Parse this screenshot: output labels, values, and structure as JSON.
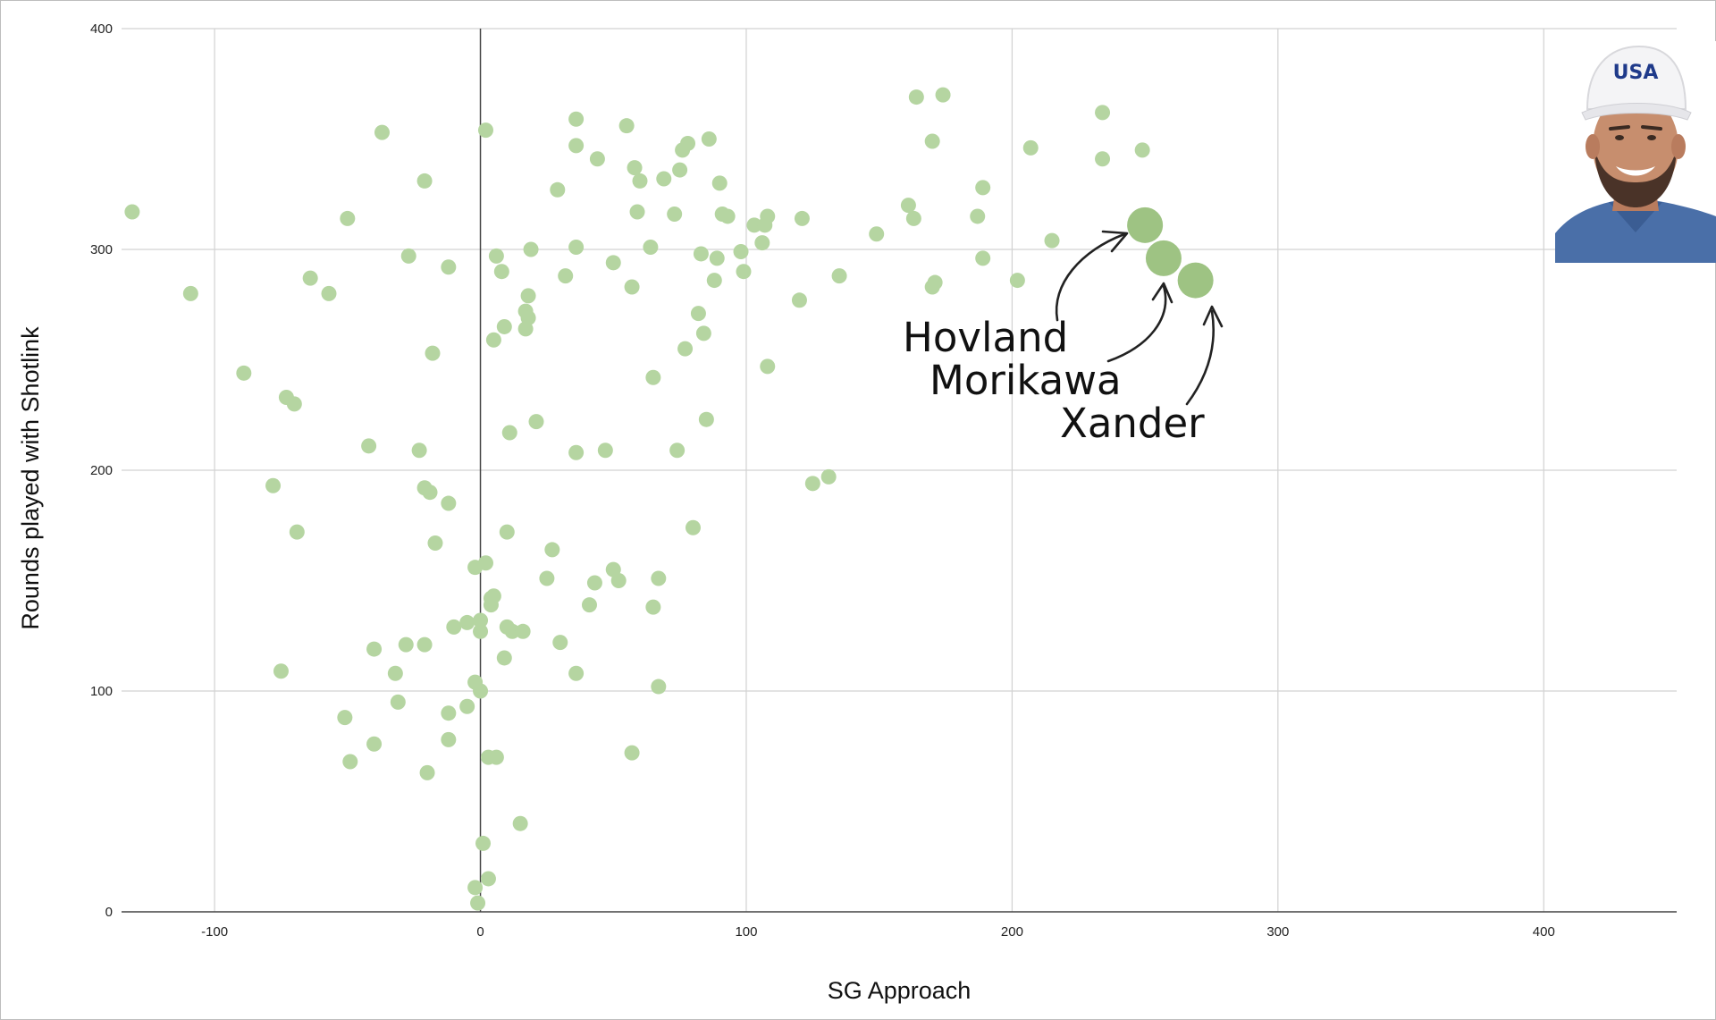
{
  "chart_data": {
    "type": "scatter",
    "xlabel": "SG Approach",
    "ylabel": "Rounds played with Shotlink",
    "xlim": [
      -135,
      450
    ],
    "ylim": [
      0,
      400
    ],
    "x_ticks": [
      "-100",
      "0",
      "100",
      "200",
      "300",
      "400"
    ],
    "x_tick_values": [
      -100,
      0,
      100,
      200,
      300,
      400
    ],
    "y_ticks": [
      "0",
      "100",
      "200",
      "300",
      "400"
    ],
    "y_tick_values": [
      0,
      100,
      200,
      300,
      400
    ],
    "grid": true,
    "point_color": "#b5d5a1",
    "highlight_color": "#9ec383",
    "points": [
      {
        "x": -131,
        "y": 317
      },
      {
        "x": -109,
        "y": 280
      },
      {
        "x": -89,
        "y": 244
      },
      {
        "x": -78,
        "y": 193
      },
      {
        "x": -75,
        "y": 109
      },
      {
        "x": -73,
        "y": 233
      },
      {
        "x": -70,
        "y": 230
      },
      {
        "x": -69,
        "y": 172
      },
      {
        "x": -64,
        "y": 287
      },
      {
        "x": -57,
        "y": 280
      },
      {
        "x": -51,
        "y": 88
      },
      {
        "x": -50,
        "y": 314
      },
      {
        "x": -49,
        "y": 68
      },
      {
        "x": -42,
        "y": 211
      },
      {
        "x": -40,
        "y": 76
      },
      {
        "x": -40,
        "y": 119
      },
      {
        "x": -37,
        "y": 353
      },
      {
        "x": -32,
        "y": 108
      },
      {
        "x": -31,
        "y": 95
      },
      {
        "x": -28,
        "y": 121
      },
      {
        "x": -27,
        "y": 297
      },
      {
        "x": -23,
        "y": 209
      },
      {
        "x": -21,
        "y": 331
      },
      {
        "x": -21,
        "y": 192
      },
      {
        "x": -21,
        "y": 121
      },
      {
        "x": -20,
        "y": 63
      },
      {
        "x": -19,
        "y": 190
      },
      {
        "x": -18,
        "y": 253
      },
      {
        "x": -17,
        "y": 167
      },
      {
        "x": -12,
        "y": 292
      },
      {
        "x": -12,
        "y": 185
      },
      {
        "x": -12,
        "y": 90
      },
      {
        "x": -12,
        "y": 78
      },
      {
        "x": -10,
        "y": 129
      },
      {
        "x": -5,
        "y": 131
      },
      {
        "x": -5,
        "y": 93
      },
      {
        "x": -2,
        "y": 156
      },
      {
        "x": -2,
        "y": 104
      },
      {
        "x": -2,
        "y": 11
      },
      {
        "x": -1,
        "y": 4
      },
      {
        "x": 0,
        "y": 132
      },
      {
        "x": 0,
        "y": 127
      },
      {
        "x": 0,
        "y": 100
      },
      {
        "x": 1,
        "y": 31
      },
      {
        "x": 2,
        "y": 354
      },
      {
        "x": 2,
        "y": 158
      },
      {
        "x": 3,
        "y": 70
      },
      {
        "x": 3,
        "y": 15
      },
      {
        "x": 4,
        "y": 142
      },
      {
        "x": 4,
        "y": 139
      },
      {
        "x": 5,
        "y": 259
      },
      {
        "x": 5,
        "y": 143
      },
      {
        "x": 6,
        "y": 70
      },
      {
        "x": 6,
        "y": 297
      },
      {
        "x": 8,
        "y": 290
      },
      {
        "x": 9,
        "y": 265
      },
      {
        "x": 9,
        "y": 115
      },
      {
        "x": 10,
        "y": 172
      },
      {
        "x": 10,
        "y": 129
      },
      {
        "x": 11,
        "y": 217
      },
      {
        "x": 12,
        "y": 127
      },
      {
        "x": 15,
        "y": 40
      },
      {
        "x": 16,
        "y": 127
      },
      {
        "x": 17,
        "y": 264
      },
      {
        "x": 17,
        "y": 272
      },
      {
        "x": 18,
        "y": 269
      },
      {
        "x": 18,
        "y": 279
      },
      {
        "x": 19,
        "y": 300
      },
      {
        "x": 21,
        "y": 222
      },
      {
        "x": 25,
        "y": 151
      },
      {
        "x": 27,
        "y": 164
      },
      {
        "x": 29,
        "y": 327
      },
      {
        "x": 30,
        "y": 122
      },
      {
        "x": 32,
        "y": 288
      },
      {
        "x": 36,
        "y": 359
      },
      {
        "x": 36,
        "y": 347
      },
      {
        "x": 36,
        "y": 301
      },
      {
        "x": 36,
        "y": 208
      },
      {
        "x": 36,
        "y": 108
      },
      {
        "x": 41,
        "y": 139
      },
      {
        "x": 43,
        "y": 149
      },
      {
        "x": 44,
        "y": 341
      },
      {
        "x": 47,
        "y": 209
      },
      {
        "x": 50,
        "y": 294
      },
      {
        "x": 50,
        "y": 155
      },
      {
        "x": 52,
        "y": 150
      },
      {
        "x": 55,
        "y": 356
      },
      {
        "x": 57,
        "y": 283
      },
      {
        "x": 57,
        "y": 72
      },
      {
        "x": 58,
        "y": 337
      },
      {
        "x": 59,
        "y": 317
      },
      {
        "x": 60,
        "y": 331
      },
      {
        "x": 64,
        "y": 301
      },
      {
        "x": 65,
        "y": 242
      },
      {
        "x": 65,
        "y": 138
      },
      {
        "x": 67,
        "y": 151
      },
      {
        "x": 67,
        "y": 102
      },
      {
        "x": 69,
        "y": 332
      },
      {
        "x": 73,
        "y": 316
      },
      {
        "x": 74,
        "y": 209
      },
      {
        "x": 75,
        "y": 336
      },
      {
        "x": 76,
        "y": 345
      },
      {
        "x": 77,
        "y": 255
      },
      {
        "x": 78,
        "y": 348
      },
      {
        "x": 80,
        "y": 174
      },
      {
        "x": 82,
        "y": 271
      },
      {
        "x": 83,
        "y": 298
      },
      {
        "x": 84,
        "y": 262
      },
      {
        "x": 85,
        "y": 223
      },
      {
        "x": 86,
        "y": 350
      },
      {
        "x": 88,
        "y": 286
      },
      {
        "x": 89,
        "y": 296
      },
      {
        "x": 90,
        "y": 330
      },
      {
        "x": 91,
        "y": 316
      },
      {
        "x": 93,
        "y": 315
      },
      {
        "x": 98,
        "y": 299
      },
      {
        "x": 99,
        "y": 290
      },
      {
        "x": 103,
        "y": 311
      },
      {
        "x": 106,
        "y": 303
      },
      {
        "x": 107,
        "y": 311
      },
      {
        "x": 108,
        "y": 315
      },
      {
        "x": 108,
        "y": 247
      },
      {
        "x": 120,
        "y": 277
      },
      {
        "x": 121,
        "y": 314
      },
      {
        "x": 125,
        "y": 194
      },
      {
        "x": 131,
        "y": 197
      },
      {
        "x": 135,
        "y": 288
      },
      {
        "x": 149,
        "y": 307
      },
      {
        "x": 161,
        "y": 320
      },
      {
        "x": 163,
        "y": 314
      },
      {
        "x": 164,
        "y": 369
      },
      {
        "x": 170,
        "y": 349
      },
      {
        "x": 170,
        "y": 283
      },
      {
        "x": 171,
        "y": 285
      },
      {
        "x": 174,
        "y": 370
      },
      {
        "x": 187,
        "y": 315
      },
      {
        "x": 189,
        "y": 328
      },
      {
        "x": 189,
        "y": 296
      },
      {
        "x": 202,
        "y": 286
      },
      {
        "x": 207,
        "y": 346
      },
      {
        "x": 215,
        "y": 304
      },
      {
        "x": 234,
        "y": 362
      },
      {
        "x": 234,
        "y": 341
      },
      {
        "x": 249,
        "y": 345
      }
    ],
    "highlighted_points": [
      {
        "label": "Hovland",
        "x": 250,
        "y": 311
      },
      {
        "label": "Morikawa",
        "x": 257,
        "y": 296
      },
      {
        "label": "Xander",
        "x": 269,
        "y": 286
      }
    ]
  },
  "photo": {
    "cap_text": "USA",
    "cap_text_color_blue": "#1f3a8a",
    "cap_text_color_red": "#d9232e",
    "icon": "golfer-portrait-icon"
  }
}
